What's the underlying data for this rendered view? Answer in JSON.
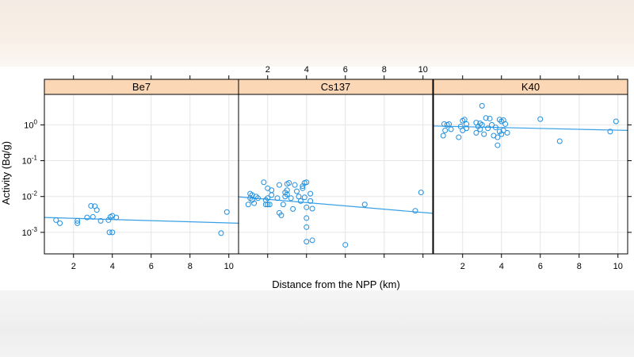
{
  "chart_data": {
    "type": "scatter",
    "xlabel": "Distance from the NPP (km)",
    "ylabel": "Activity (Bq/g)",
    "xlim": [
      0.5,
      10.5
    ],
    "ylim_log10": [
      -3.6,
      0.85
    ],
    "y_scale": "log",
    "x_ticks": [
      2,
      4,
      6,
      8,
      10
    ],
    "x_tick_labels": [
      "2",
      "4",
      "6",
      "8",
      "10"
    ],
    "y_ticks": [
      -3,
      -2,
      -1,
      0
    ],
    "y_tick_labels": [
      "10",
      "10",
      "10",
      "10"
    ],
    "y_tick_exponents": [
      "-3",
      "-2",
      "-1",
      "0"
    ],
    "grid": true,
    "point_color": "#1f8fdf",
    "line_color": "#3aa0e6",
    "strip_color": "#fcd7b5",
    "panels": [
      {
        "name": "Be7",
        "points": [
          [
            1.1,
            0.0022
          ],
          [
            1.3,
            0.0018
          ],
          [
            2.2,
            0.0021
          ],
          [
            2.2,
            0.0018
          ],
          [
            2.7,
            0.0026
          ],
          [
            2.9,
            0.0055
          ],
          [
            3.0,
            0.0027
          ],
          [
            3.1,
            0.0054
          ],
          [
            3.2,
            0.0042
          ],
          [
            3.4,
            0.0021
          ],
          [
            3.8,
            0.0022
          ],
          [
            3.85,
            0.001
          ],
          [
            3.9,
            0.0027
          ],
          [
            4.0,
            0.0029
          ],
          [
            4.0,
            0.001
          ],
          [
            4.2,
            0.0026
          ],
          [
            9.6,
            0.00095
          ],
          [
            9.9,
            0.0037
          ]
        ],
        "fit": [
          [
            0.5,
            0.0026
          ],
          [
            10.5,
            0.0018
          ]
        ]
      },
      {
        "name": "Cs137",
        "points": [
          [
            1.0,
            0.006
          ],
          [
            1.1,
            0.009
          ],
          [
            1.1,
            0.012
          ],
          [
            1.2,
            0.008
          ],
          [
            1.2,
            0.011
          ],
          [
            1.3,
            0.0065
          ],
          [
            1.4,
            0.01
          ],
          [
            1.5,
            0.009
          ],
          [
            1.8,
            0.025
          ],
          [
            1.9,
            0.006
          ],
          [
            1.9,
            0.008
          ],
          [
            2.0,
            0.017
          ],
          [
            2.0,
            0.009
          ],
          [
            2.0,
            0.006
          ],
          [
            2.1,
            0.006
          ],
          [
            2.2,
            0.015
          ],
          [
            2.2,
            0.011
          ],
          [
            2.5,
            0.009
          ],
          [
            2.6,
            0.021
          ],
          [
            2.6,
            0.0035
          ],
          [
            2.7,
            0.003
          ],
          [
            2.8,
            0.006
          ],
          [
            2.9,
            0.013
          ],
          [
            2.9,
            0.01
          ],
          [
            3.0,
            0.0225
          ],
          [
            3.0,
            0.015
          ],
          [
            3.0,
            0.0115
          ],
          [
            3.1,
            0.024
          ],
          [
            3.2,
            0.009
          ],
          [
            3.3,
            0.0045
          ],
          [
            3.4,
            0.021
          ],
          [
            3.5,
            0.014
          ],
          [
            3.6,
            0.01
          ],
          [
            3.7,
            0.0075
          ],
          [
            3.8,
            0.0195
          ],
          [
            3.8,
            0.017
          ],
          [
            3.9,
            0.024
          ],
          [
            3.9,
            0.0095
          ],
          [
            4.0,
            0.025
          ],
          [
            4.0,
            0.005
          ],
          [
            4.0,
            0.0025
          ],
          [
            4.0,
            0.0014
          ],
          [
            4.0,
            0.00055
          ],
          [
            4.2,
            0.012
          ],
          [
            4.2,
            0.0075
          ],
          [
            4.3,
            0.0046
          ],
          [
            4.3,
            0.0006
          ],
          [
            6.0,
            0.00045
          ],
          [
            7.0,
            0.006
          ],
          [
            9.6,
            0.004
          ],
          [
            9.9,
            0.013
          ]
        ],
        "fit": [
          [
            0.5,
            0.0098
          ],
          [
            10.5,
            0.0034
          ]
        ]
      },
      {
        "name": "K40",
        "points": [
          [
            1.0,
            0.5
          ],
          [
            1.05,
            1.05
          ],
          [
            1.1,
            0.7
          ],
          [
            1.2,
            1.0
          ],
          [
            1.3,
            1.05
          ],
          [
            1.4,
            0.75
          ],
          [
            1.8,
            0.45
          ],
          [
            1.9,
            0.9
          ],
          [
            2.0,
            1.3
          ],
          [
            2.0,
            0.7
          ],
          [
            2.1,
            1.4
          ],
          [
            2.2,
            1.05
          ],
          [
            2.2,
            0.8
          ],
          [
            2.7,
            0.6
          ],
          [
            2.7,
            1.15
          ],
          [
            2.8,
            0.9
          ],
          [
            2.9,
            1.1
          ],
          [
            2.9,
            0.75
          ],
          [
            3.0,
            3.4
          ],
          [
            3.0,
            1.0
          ],
          [
            3.1,
            0.55
          ],
          [
            3.2,
            1.55
          ],
          [
            3.3,
            0.8
          ],
          [
            3.4,
            1.5
          ],
          [
            3.5,
            1.0
          ],
          [
            3.6,
            0.5
          ],
          [
            3.7,
            0.85
          ],
          [
            3.8,
            0.45
          ],
          [
            3.8,
            0.27
          ],
          [
            3.9,
            1.4
          ],
          [
            3.9,
            0.65
          ],
          [
            4.0,
            1.25
          ],
          [
            4.0,
            0.55
          ],
          [
            4.1,
            1.35
          ],
          [
            4.1,
            0.7
          ],
          [
            4.2,
            1.05
          ],
          [
            4.3,
            0.6
          ],
          [
            6.0,
            1.45
          ],
          [
            7.0,
            0.35
          ],
          [
            9.6,
            0.65
          ],
          [
            9.9,
            1.25
          ]
        ],
        "fit": [
          [
            0.5,
            0.93
          ],
          [
            10.5,
            0.7
          ]
        ]
      }
    ]
  }
}
